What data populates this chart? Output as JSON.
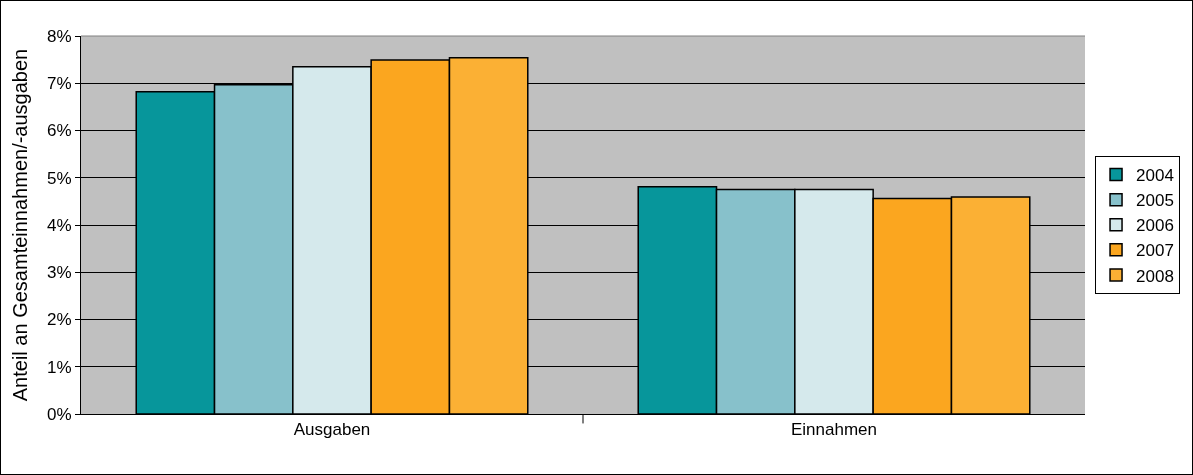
{
  "chart_data": {
    "type": "bar",
    "ylabel": "Anteil an Gesamteinnahmen/-ausgaben",
    "categories": [
      "Ausgaben",
      "Einnahmen"
    ],
    "series": [
      {
        "name": "2004",
        "color": "#07969b",
        "values": [
          6.82,
          4.81
        ]
      },
      {
        "name": "2005",
        "color": "#87c1cb",
        "values": [
          6.97,
          4.75
        ]
      },
      {
        "name": "2006",
        "color": "#d5e9ec",
        "values": [
          7.35,
          4.75
        ]
      },
      {
        "name": "2007",
        "color": "#fba61f",
        "values": [
          7.49,
          4.56
        ]
      },
      {
        "name": "2008",
        "color": "#fbb034",
        "values": [
          7.54,
          4.59
        ]
      }
    ],
    "ylim": [
      0,
      8
    ],
    "yticks": [
      {
        "value": 0,
        "label": "0%"
      },
      {
        "value": 1,
        "label": "1%"
      },
      {
        "value": 2,
        "label": "2%"
      },
      {
        "value": 3,
        "label": "3%"
      },
      {
        "value": 4,
        "label": "4%"
      },
      {
        "value": 5,
        "label": "5%"
      },
      {
        "value": 6,
        "label": "6%"
      },
      {
        "value": 7,
        "label": "7%"
      },
      {
        "value": 8,
        "label": "8%"
      }
    ],
    "grid": "y",
    "legend": "right"
  }
}
